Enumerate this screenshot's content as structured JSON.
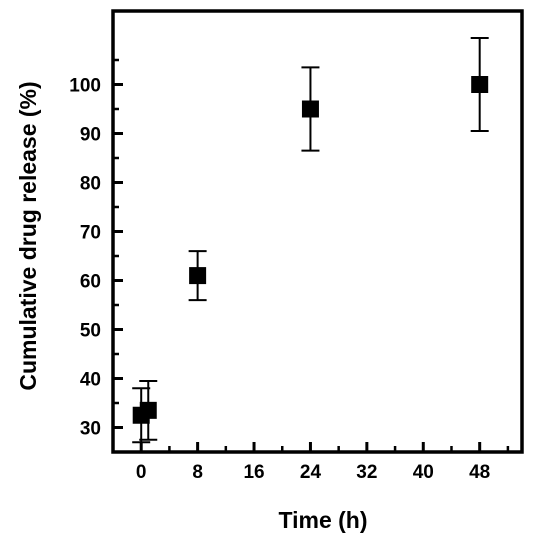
{
  "chart_data": {
    "type": "scatter",
    "title": "",
    "xlabel": "Time (h)",
    "ylabel": "Cumulative drug release (%)",
    "xlim": [
      -4,
      54
    ],
    "ylim": [
      25,
      115
    ],
    "x_ticks": [
      0,
      8,
      16,
      24,
      32,
      40,
      48
    ],
    "y_ticks": [
      30,
      40,
      50,
      60,
      70,
      80,
      90,
      100
    ],
    "grid": false,
    "legend": "none",
    "marker": "square",
    "marker_color": "#000000",
    "series": [
      {
        "x": [
          0,
          1,
          8,
          24,
          48
        ],
        "y": [
          32.5,
          33.5,
          61,
          95,
          100
        ],
        "error": [
          5.5,
          6,
          5,
          8.5,
          9.5
        ]
      }
    ]
  }
}
